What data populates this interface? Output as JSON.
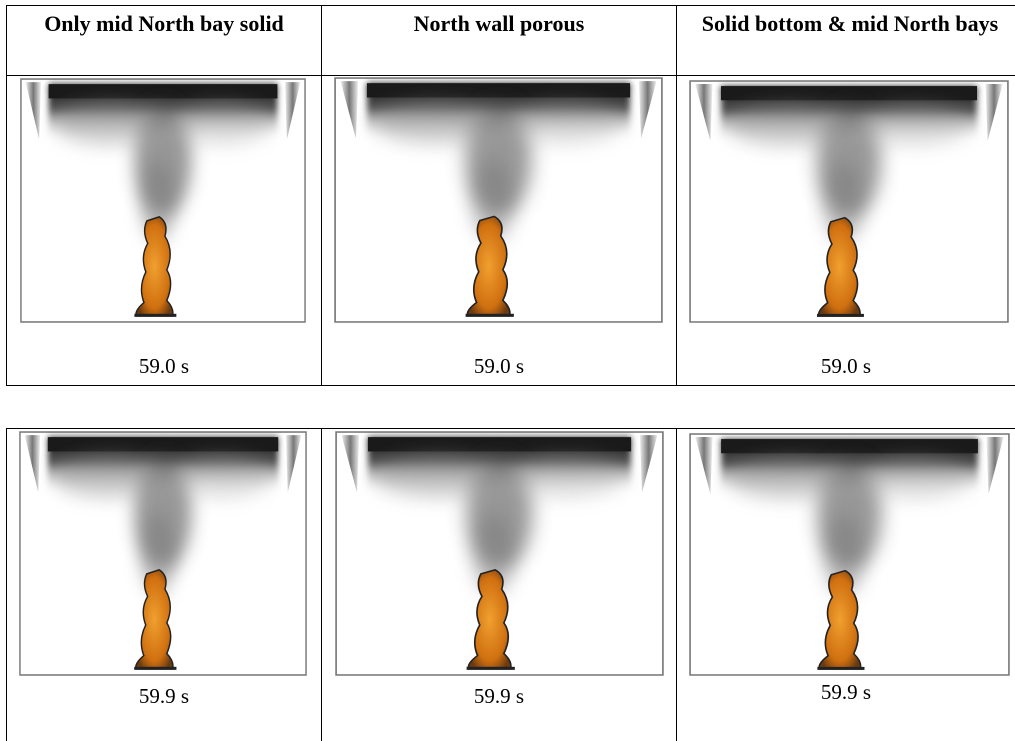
{
  "table1": {
    "headers": [
      "Only mid North bay solid",
      "North wall porous",
      "Solid bottom & mid North bays"
    ],
    "rows": [
      [
        "59.0 s",
        "59.0 s",
        "59.0 s"
      ]
    ]
  },
  "table2": {
    "rows": [
      [
        "59.9 s",
        "59.9 s",
        "59.9 s"
      ]
    ]
  }
}
